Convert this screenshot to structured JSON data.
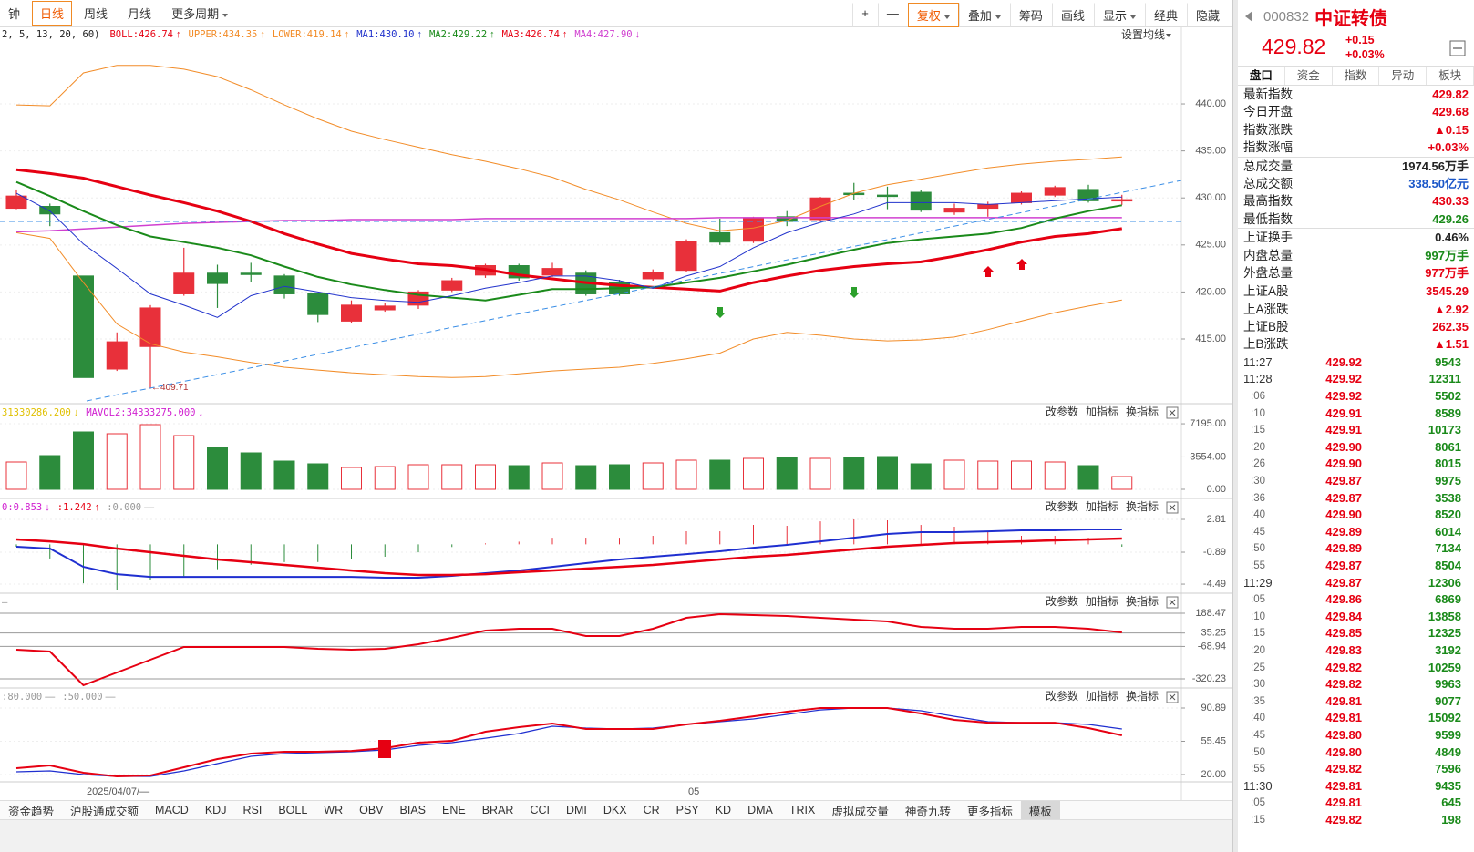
{
  "toolbar": {
    "periods": [
      "钟",
      "日线",
      "周线",
      "月线",
      "更多周期"
    ],
    "tools": [
      "+",
      "—",
      "复权",
      "叠加",
      "筹码",
      "画线",
      "显示",
      "经典",
      "隐藏"
    ]
  },
  "chart_data": [
    {
      "type": "candlestick",
      "legend": [
        {
          "text": "2, 5, 13, 20, 60)",
          "arrow": "",
          "color": "#222222"
        },
        {
          "text": "BOLL:426.74",
          "arrow": "↑",
          "color": "#e60012"
        },
        {
          "text": "UPPER:434.35",
          "arrow": "↑",
          "color": "#f28c28"
        },
        {
          "text": "LOWER:419.14",
          "arrow": "↑",
          "color": "#f28c28"
        },
        {
          "text": "MA1:430.10",
          "arrow": "↑",
          "color": "#2233cc"
        },
        {
          "text": "MA2:429.22",
          "arrow": "↑",
          "color": "#1a8a1a"
        },
        {
          "text": "MA3:426.74",
          "arrow": "↑",
          "color": "#e60012"
        },
        {
          "text": "MA4:427.90",
          "arrow": "↓",
          "color": "#d040d0"
        }
      ],
      "settings_label": "设置均线",
      "annotation": "←409.71",
      "up_color": "#e8303a",
      "down_color": "#2c8c3c",
      "open": [
        428.9,
        429.1,
        421.7,
        411.8,
        414.2,
        419.8,
        422.0,
        422.0,
        421.7,
        419.8,
        416.9,
        418.1,
        418.6,
        420.2,
        421.8,
        422.8,
        421.8,
        422.0,
        421.0,
        421.4,
        422.3,
        426.3,
        425.4,
        428.0,
        427.7,
        430.5,
        430.3,
        430.6,
        428.5,
        428.9,
        429.5,
        430.3,
        430.9,
        429.68
      ],
      "close": [
        430.2,
        428.3,
        410.9,
        414.7,
        418.3,
        422.0,
        420.9,
        422.0,
        419.8,
        417.6,
        418.6,
        418.5,
        420.0,
        421.2,
        422.8,
        421.5,
        422.5,
        419.8,
        419.8,
        422.1,
        425.4,
        425.3,
        427.9,
        427.5,
        430.0,
        430.5,
        430.3,
        428.7,
        428.9,
        429.3,
        430.5,
        431.1,
        429.7,
        429.82
      ],
      "high": [
        430.9,
        429.4,
        421.7,
        415.7,
        418.6,
        424.7,
        422.9,
        423.1,
        421.9,
        419.9,
        419.1,
        418.8,
        420.2,
        421.5,
        423.0,
        423.0,
        423.1,
        422.3,
        421.3,
        422.4,
        425.6,
        427.8,
        428.0,
        428.6,
        430.1,
        431.6,
        431.2,
        430.8,
        429.4,
        429.6,
        430.7,
        431.3,
        431.4,
        430.33
      ],
      "low": [
        428.8,
        427.0,
        410.9,
        411.6,
        409.71,
        419.6,
        418.3,
        421.1,
        419.3,
        416.8,
        416.7,
        417.9,
        418.2,
        420.0,
        421.5,
        421.2,
        421.6,
        419.6,
        419.6,
        421.2,
        422.1,
        425.0,
        425.2,
        427.0,
        427.5,
        429.8,
        428.8,
        428.5,
        428.2,
        428.0,
        429.3,
        430.1,
        429.5,
        429.26
      ],
      "series": [
        {
          "color": "#f28c28",
          "width": 1,
          "values": [
            439.9,
            439.8,
            443.3,
            444.1,
            444.1,
            443.7,
            442.9,
            441.5,
            439.9,
            438.4,
            437.1,
            436.2,
            435.4,
            434.6,
            433.9,
            433.1,
            432.2,
            430.9,
            429.8,
            428.5,
            427.3,
            426.5,
            426.8,
            427.6,
            429.1,
            430.5,
            431.4,
            432.0,
            432.6,
            433.2,
            433.6,
            433.9,
            434.1,
            434.35
          ]
        },
        {
          "color": "#f28c28",
          "width": 1,
          "values": [
            426.3,
            425.7,
            421.0,
            416.6,
            414.5,
            413.6,
            413.1,
            412.5,
            412.0,
            411.7,
            411.4,
            411.2,
            411.0,
            410.9,
            411.0,
            411.3,
            411.6,
            411.8,
            412.0,
            412.4,
            412.9,
            413.5,
            415.0,
            415.7,
            415.4,
            415.0,
            414.8,
            414.9,
            415.2,
            416.0,
            416.9,
            417.8,
            418.5,
            419.14
          ]
        },
        {
          "color": "#d040d0",
          "width": 1.5,
          "values": [
            426.4,
            426.5,
            426.7,
            426.9,
            427.1,
            427.3,
            427.4,
            427.5,
            427.6,
            427.6,
            427.7,
            427.7,
            427.7,
            427.7,
            427.8,
            427.8,
            427.8,
            427.8,
            427.8,
            427.8,
            427.8,
            427.9,
            427.9,
            427.9,
            427.9,
            427.9,
            427.9,
            427.9,
            427.9,
            427.9,
            427.9,
            427.9,
            427.9,
            427.9
          ]
        },
        {
          "color": "#e60012",
          "width": 3,
          "values": [
            433.0,
            432.6,
            432.1,
            431.2,
            430.3,
            429.5,
            428.6,
            427.5,
            426.2,
            425.1,
            424.1,
            423.5,
            423.0,
            422.8,
            422.4,
            421.8,
            421.4,
            421.0,
            420.7,
            420.5,
            420.3,
            420.1,
            421.0,
            421.7,
            422.3,
            422.7,
            423.0,
            423.2,
            423.8,
            424.5,
            425.3,
            425.9,
            426.2,
            426.74
          ]
        },
        {
          "color": "#1a8a1a",
          "width": 2,
          "values": [
            431.7,
            430.2,
            428.6,
            427.1,
            425.9,
            425.3,
            424.7,
            423.9,
            422.7,
            421.6,
            420.8,
            420.2,
            419.7,
            419.4,
            419.1,
            419.7,
            420.3,
            420.3,
            420.4,
            420.5,
            421.0,
            421.5,
            422.2,
            422.9,
            423.7,
            424.5,
            425.2,
            425.6,
            425.9,
            426.2,
            426.8,
            427.8,
            428.6,
            429.22
          ]
        },
        {
          "color": "#2233cc",
          "width": 1,
          "values": [
            430.5,
            428.6,
            425.1,
            422.5,
            419.8,
            418.6,
            417.3,
            419.6,
            420.6,
            420.0,
            419.4,
            419.1,
            418.9,
            419.6,
            420.4,
            421.0,
            421.7,
            421.7,
            421.2,
            420.4,
            421.7,
            422.7,
            424.7,
            426.3,
            427.4,
            428.3,
            429.5,
            429.5,
            429.5,
            429.3,
            429.5,
            429.7,
            429.9,
            430.1
          ]
        }
      ],
      "ylim": [
        408.41,
        446.69
      ],
      "yticks": [
        {
          "value": 440,
          "label": "440.00"
        },
        {
          "value": 435,
          "label": "435.00"
        },
        {
          "value": 430,
          "label": "430.00"
        },
        {
          "value": 425,
          "label": "425.00"
        },
        {
          "value": 420,
          "label": "420.00"
        },
        {
          "value": 415,
          "label": "415.00"
        }
      ]
    },
    {
      "type": "bar",
      "legend": [
        {
          "text": "31330286.200",
          "arrow": "↓",
          "color": "#e0c000"
        },
        {
          "text": "MAVOL2:34333275.000",
          "arrow": "↓",
          "color": "#d020d0"
        }
      ],
      "values": [
        3000,
        3700,
        6300,
        6100,
        7100,
        5900,
        4600,
        4000,
        3100,
        2800,
        2400,
        2500,
        2700,
        2700,
        2700,
        2600,
        2900,
        2600,
        2700,
        2900,
        3200,
        3200,
        3400,
        3500,
        3400,
        3500,
        3600,
        2800,
        3200,
        3100,
        3100,
        3000,
        2600,
        1400
      ],
      "ylim": [
        0,
        8200
      ],
      "yticks": [
        {
          "value": 7195,
          "label": "7195.00"
        },
        {
          "value": 3554,
          "label": "3554.00"
        },
        {
          "value": 0,
          "label": "0.00"
        }
      ]
    },
    {
      "type": "macd",
      "legend": [
        {
          "text": "0:0.853",
          "arrow": "↓",
          "color": "#d020d0"
        },
        {
          "text": ":1.242",
          "arrow": "↑",
          "color": "#e60012"
        },
        {
          "text": ":0.000",
          "arrow": "—",
          "color": "#999999"
        }
      ],
      "histogram": [
        -0.27,
        -1.6,
        -4.4,
        -5.2,
        -4.0,
        -3.6,
        -2.8,
        -2.3,
        -2.0,
        -2.0,
        -1.7,
        -1.4,
        -0.9,
        -0.3,
        0.1,
        0.3,
        0.75,
        0.75,
        0.75,
        0.96,
        1.47,
        1.47,
        2.19,
        2.09,
        2.6,
        2.81,
        2.71,
        2.19,
        1.99,
        1.47,
        0.96,
        0.96,
        0.75,
        -0.27
      ],
      "up_color": "#e8303a",
      "down_color": "#2c8c3c",
      "series": [
        {
          "color": "#1f2fd0",
          "width": 2,
          "values": [
            -0.27,
            -0.48,
            -2.54,
            -3.36,
            -3.67,
            -3.67,
            -3.67,
            -3.67,
            -3.67,
            -3.67,
            -3.67,
            -3.77,
            -3.77,
            -3.56,
            -3.25,
            -2.95,
            -2.54,
            -2.12,
            -1.71,
            -1.4,
            -1.1,
            -0.79,
            -0.38,
            -0.07,
            0.34,
            0.75,
            1.17,
            1.37,
            1.37,
            1.47,
            1.58,
            1.58,
            1.68,
            1.68
          ]
        },
        {
          "color": "#e60012",
          "width": 2.5,
          "values": [
            0.55,
            0.34,
            0.03,
            -0.48,
            -0.89,
            -1.3,
            -1.71,
            -2.02,
            -2.33,
            -2.64,
            -2.95,
            -3.25,
            -3.46,
            -3.46,
            -3.36,
            -3.15,
            -2.95,
            -2.74,
            -2.54,
            -2.33,
            -2.02,
            -1.71,
            -1.4,
            -1.2,
            -0.89,
            -0.58,
            -0.27,
            -0.07,
            0.14,
            0.24,
            0.34,
            0.45,
            0.55,
            0.65
          ]
        }
      ],
      "ylim": [
        -5.41,
        3.84
      ],
      "yticks": [
        2.81,
        -0.89,
        -4.49
      ]
    },
    {
      "type": "line",
      "legend": [
        {
          "text": "—",
          "arrow": "",
          "color": "#999999"
        }
      ],
      "series": [
        {
          "color": "#e60012",
          "width": 2,
          "values": [
            -94.1,
            -108.3,
            -369.7,
            -270.8,
            -171.8,
            -72.9,
            -72.9,
            -72.9,
            -72.9,
            -87.1,
            -94.1,
            -87.1,
            -51.7,
            -2.3,
            54.2,
            68.4,
            68.4,
            11.9,
            11.9,
            68.4,
            153.1,
            181.4,
            174.3,
            167.3,
            153.1,
            139.0,
            124.9,
            82.5,
            68.4,
            68.4,
            82.5,
            82.5,
            68.4,
            40.1
          ]
        }
      ],
      "ylim": [
        -390.9,
        245.0
      ],
      "yticks": [
        188.47,
        35.25,
        -68.94,
        -320.23
      ]
    },
    {
      "type": "line",
      "legend": [
        {
          "text": ":80.000",
          "arrow": "—",
          "color": "#999999"
        },
        {
          "text": ":50.000",
          "arrow": "—",
          "color": "#999999"
        }
      ],
      "series": [
        {
          "color": "#1f2fd0",
          "width": 1.2,
          "values": [
            22.9,
            23.9,
            20.0,
            18.1,
            18.1,
            23.9,
            31.7,
            39.4,
            42.3,
            43.3,
            44.3,
            46.2,
            51.1,
            54.0,
            58.8,
            63.7,
            71.5,
            69.5,
            68.6,
            69.5,
            73.4,
            76.3,
            79.2,
            84.1,
            88.9,
            90.9,
            90.9,
            88.0,
            82.1,
            76.3,
            75.3,
            75.3,
            73.4,
            68.6
          ]
        },
        {
          "color": "#e60012",
          "width": 2,
          "values": [
            26.8,
            29.7,
            21.9,
            18.1,
            19.0,
            27.8,
            36.5,
            42.3,
            44.3,
            44.3,
            45.2,
            48.2,
            54.0,
            55.9,
            65.6,
            70.5,
            74.4,
            68.6,
            68.6,
            68.6,
            73.4,
            77.3,
            82.1,
            87.0,
            90.9,
            90.9,
            90.9,
            85.1,
            78.3,
            75.3,
            75.3,
            75.3,
            69.5,
            61.8
          ]
        }
      ],
      "ylim": [
        13.2,
        97.7
      ],
      "yticks": [
        90.89,
        55.45,
        {
          "value": 20,
          "label": "20.00"
        }
      ]
    }
  ],
  "panel_buttons": [
    "改参数",
    "加指标",
    "换指标"
  ],
  "date_labels": [
    "2025/04/07/—",
    "05"
  ],
  "indicator_tabs": [
    "资金趋势",
    "沪股通成交额",
    "MACD",
    "KDJ",
    "RSI",
    "BOLL",
    "WR",
    "OBV",
    "BIAS",
    "ENE",
    "BRAR",
    "CCI",
    "DMI",
    "DKX",
    "CR",
    "PSY",
    "KD",
    "DMA",
    "TRIX",
    "虚拟成交量",
    "神奇九转",
    "更多指标",
    "模板"
  ],
  "quote": {
    "code": "000832",
    "name": "中证转债",
    "price": "429.82",
    "change": "+0.15",
    "pct": "+0.03%",
    "tabs": [
      "盘口",
      "资金",
      "指数",
      "异动",
      "板块"
    ],
    "rows": [
      {
        "label": "最新指数",
        "value": "429.82",
        "color": "#e60012"
      },
      {
        "label": "今日开盘",
        "value": "429.68",
        "color": "#e60012"
      },
      {
        "label": "指数涨跌",
        "value": "▲0.15",
        "color": "#e60012"
      },
      {
        "label": "指数涨幅",
        "value": "+0.03%",
        "color": "#e60012"
      },
      {
        "label": "总成交量",
        "value": "1974.56万手",
        "color": "#222222"
      },
      {
        "label": "总成交额",
        "value": "338.50亿元",
        "color": "#1a56c8"
      },
      {
        "label": "最高指数",
        "value": "430.33",
        "color": "#e60012"
      },
      {
        "label": "最低指数",
        "value": "429.26",
        "color": "#1a8a1a"
      },
      {
        "label": "上证换手",
        "value": "0.46%",
        "color": "#222222"
      },
      {
        "label": "内盘总量",
        "value": "997万手",
        "color": "#1a8a1a"
      },
      {
        "label": "外盘总量",
        "value": "977万手",
        "color": "#e60012"
      },
      {
        "label": "上证A股",
        "value": "3545.29",
        "color": "#e60012"
      },
      {
        "label": "上A涨跌",
        "value": "▲2.92",
        "color": "#e60012"
      },
      {
        "label": "上证B股",
        "value": "262.35",
        "color": "#e60012"
      },
      {
        "label": "上B涨跌",
        "value": "▲1.51",
        "color": "#e60012"
      }
    ],
    "tick_price_color": "#e60012",
    "tick_volume_color": "#1a8a1a",
    "ticks": [
      {
        "time": "11:27",
        "price": "429.92",
        "volume": "9543"
      },
      {
        "time": "11:28",
        "price": "429.92",
        "volume": "12311"
      },
      {
        "time": ":06",
        "price": "429.92",
        "volume": "5502"
      },
      {
        "time": ":10",
        "price": "429.91",
        "volume": "8589"
      },
      {
        "time": ":15",
        "price": "429.91",
        "volume": "10173"
      },
      {
        "time": ":20",
        "price": "429.90",
        "volume": "8061"
      },
      {
        "time": ":26",
        "price": "429.90",
        "volume": "8015"
      },
      {
        "time": ":30",
        "price": "429.87",
        "volume": "9975"
      },
      {
        "time": ":36",
        "price": "429.87",
        "volume": "3538"
      },
      {
        "time": ":40",
        "price": "429.90",
        "volume": "8520"
      },
      {
        "time": ":45",
        "price": "429.89",
        "volume": "6014"
      },
      {
        "time": ":50",
        "price": "429.89",
        "volume": "7134"
      },
      {
        "time": ":55",
        "price": "429.87",
        "volume": "8504"
      },
      {
        "time": "11:29",
        "price": "429.87",
        "volume": "12306"
      },
      {
        "time": ":05",
        "price": "429.86",
        "volume": "6869"
      },
      {
        "time": ":10",
        "price": "429.84",
        "volume": "13858"
      },
      {
        "time": ":15",
        "price": "429.85",
        "volume": "12325"
      },
      {
        "time": ":20",
        "price": "429.83",
        "volume": "3192"
      },
      {
        "time": ":25",
        "price": "429.82",
        "volume": "10259"
      },
      {
        "time": ":30",
        "price": "429.82",
        "volume": "9963"
      },
      {
        "time": ":35",
        "price": "429.81",
        "volume": "9077"
      },
      {
        "time": ":40",
        "price": "429.81",
        "volume": "15092"
      },
      {
        "time": ":45",
        "price": "429.80",
        "volume": "9599"
      },
      {
        "time": ":50",
        "price": "429.80",
        "volume": "4849"
      },
      {
        "time": ":55",
        "price": "429.82",
        "volume": "7596"
      },
      {
        "time": "11:30",
        "price": "429.81",
        "volume": "9435"
      },
      {
        "time": ":05",
        "price": "429.81",
        "volume": "645"
      },
      {
        "time": ":15",
        "price": "429.82",
        "volume": "198"
      }
    ]
  }
}
